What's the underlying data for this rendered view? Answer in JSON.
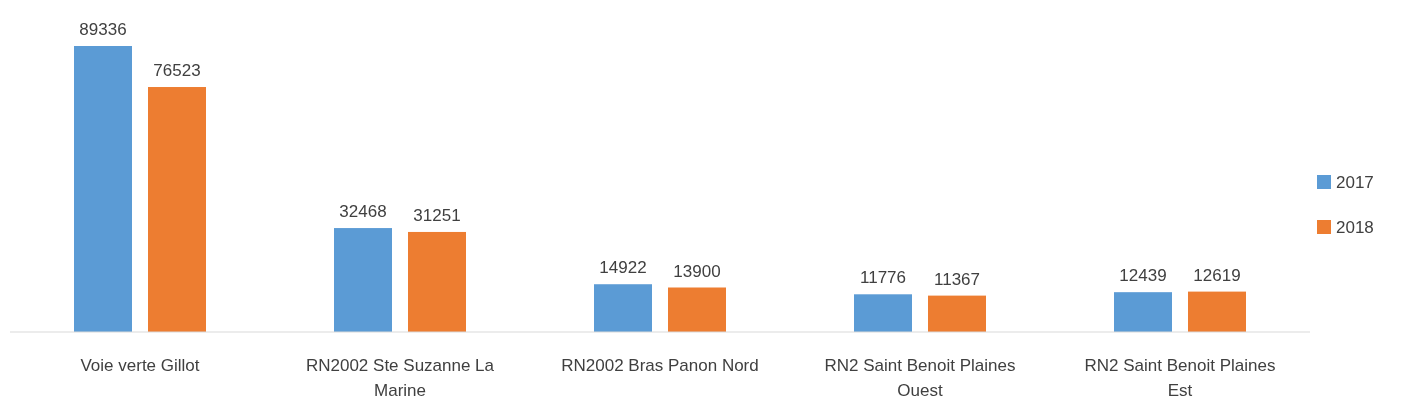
{
  "chart_data": {
    "type": "bar",
    "relative": false,
    "categories": [
      "Voie verte Gillot",
      "RN2002 Ste Suzanne La Marine",
      "RN2002 Bras Panon Nord",
      "RN2 Saint Benoit Plaines Ouest",
      "RN2 Saint Benoit Plaines Est"
    ],
    "series": [
      {
        "name": "2017",
        "color": "#5b9bd5",
        "values": [
          89336,
          32468,
          14922,
          11776,
          12439
        ]
      },
      {
        "name": "2018",
        "color": "#ed7d31",
        "values": [
          76523,
          31251,
          13900,
          11367,
          12619
        ]
      }
    ],
    "data_labels": true,
    "legend": "right"
  }
}
